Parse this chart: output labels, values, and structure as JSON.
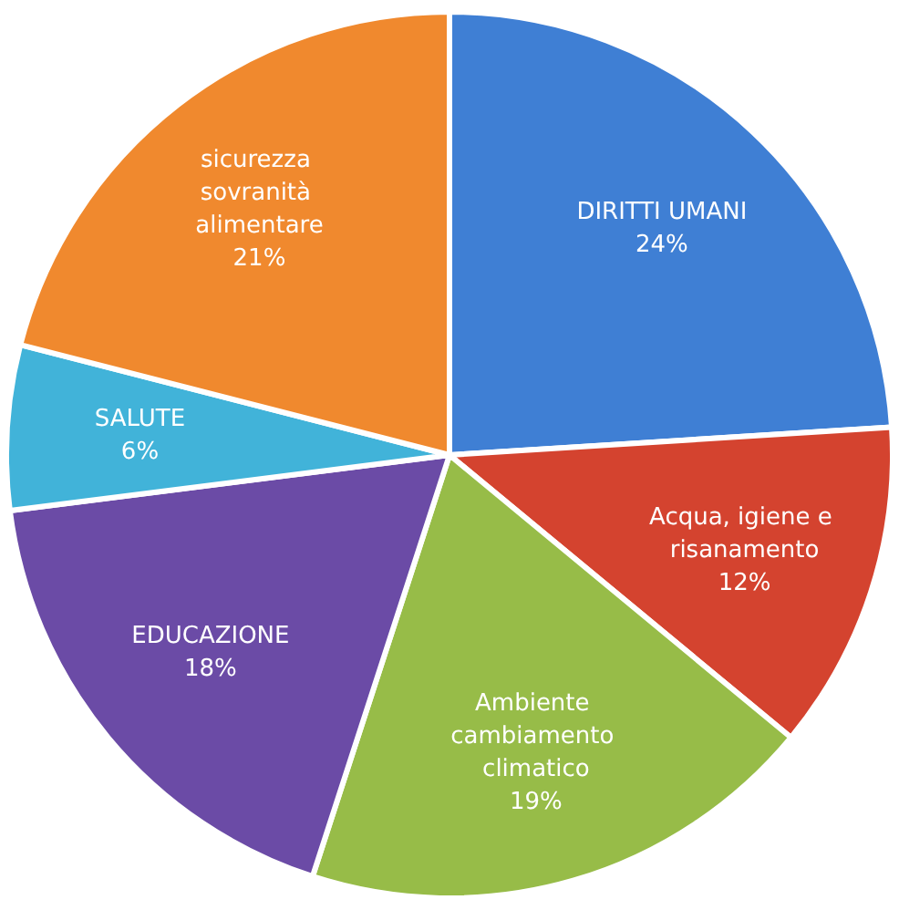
{
  "chart_data": {
    "type": "pie",
    "categories": [
      "DIRITTI UMANI",
      "Acqua, igiene e risanamento",
      "Ambiente cambiamento climatico",
      "EDUCAZIONE",
      "SALUTE",
      "sicurezza sovranità alimentare"
    ],
    "values": [
      24,
      12,
      19,
      18,
      6,
      21
    ],
    "value_labels": [
      "24%",
      "12%",
      "19%",
      "18%",
      "6%",
      "21%"
    ],
    "colors": [
      "#3f7fd4",
      "#d4432f",
      "#97bc48",
      "#6b4ba6",
      "#41b3d9",
      "#f0892e"
    ],
    "legend": false
  }
}
